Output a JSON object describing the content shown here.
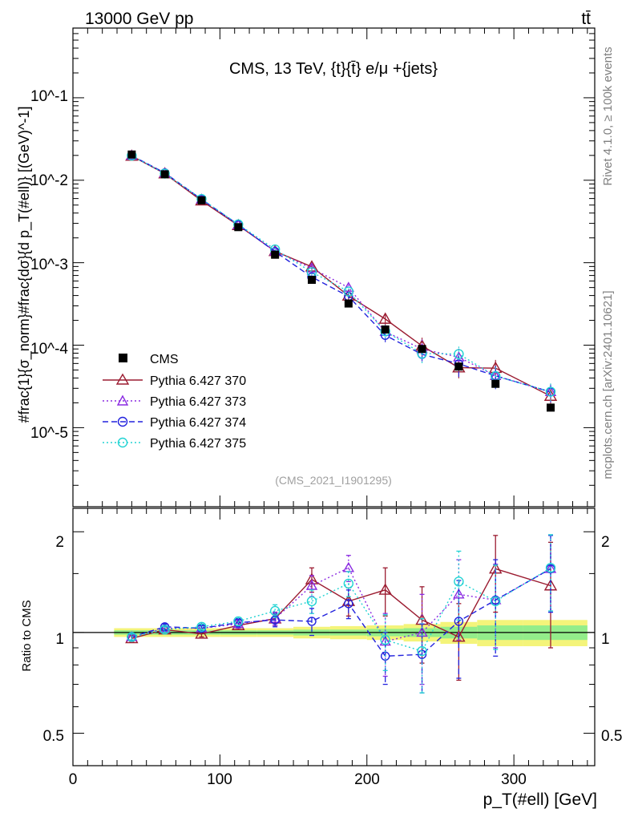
{
  "header": {
    "energy_label": "13000 GeV pp",
    "process_label": "tt̄",
    "rivet_label": "Rivet 4.1.0, ≥ 100k events",
    "source_label": "mcplots.cern.ch [arXiv:2401.10621]"
  },
  "chart_data": {
    "type": "line",
    "title": "CMS, 13 TeV, {t}{t̄} e/μ +{jets}",
    "analysis_id": "(CMS_2021_I1901295)",
    "xlabel": "p_T(#ell) [GeV]",
    "ylabel": "#frac{1}{σ_norm}#frac{dσ}{d p_T(#ell)} [(GeV)^-1]",
    "ratio_ylabel": "Ratio to CMS",
    "xlim": [
      0,
      355
    ],
    "ylim": [
      1.1e-06,
      0.7
    ],
    "ratio_ylim": [
      0.4,
      2.35
    ],
    "yscale": "log",
    "x_ticks": [
      "0",
      "100",
      "200",
      "300"
    ],
    "y_ticks": [
      "10^-5",
      "10^-4",
      "10^-3",
      "10^-2",
      "10^-1"
    ],
    "ratio_ticks": [
      "0.5",
      "1",
      "2"
    ],
    "x": [
      40,
      62.5,
      87.5,
      112.5,
      137.5,
      162.5,
      187.5,
      212.5,
      237.5,
      262.5,
      287.5,
      325
    ],
    "data": {
      "name": "CMS",
      "values": [
        0.0205,
        0.0118,
        0.0057,
        0.0027,
        0.00125,
        0.00062,
        0.00032,
        0.000155,
        9e-05,
        5.5e-05,
        3.4e-05,
        1.75e-05
      ],
      "band_inner": [
        0.015,
        0.015,
        0.015,
        0.015,
        0.015,
        0.02,
        0.02,
        0.025,
        0.03,
        0.04,
        0.05,
        0.05
      ],
      "band_outer": [
        0.03,
        0.03,
        0.03,
        0.03,
        0.03,
        0.04,
        0.045,
        0.05,
        0.06,
        0.075,
        0.09,
        0.09
      ]
    },
    "legend": [
      "CMS",
      "Pythia 6.427 370",
      "Pythia 6.427 373",
      "Pythia 6.427 374",
      "Pythia 6.427 375"
    ],
    "series": [
      {
        "name": "Pythia 6.427 370",
        "color": "#9b1b30",
        "marker": "triangle",
        "dash": "",
        "ratio": [
          0.96,
          1.02,
          0.99,
          1.05,
          1.1,
          1.44,
          1.24,
          1.34,
          1.09,
          0.97,
          1.55,
          1.38
        ],
        "ratio_err": [
          0.02,
          0.02,
          0.02,
          0.03,
          0.05,
          0.12,
          0.12,
          0.22,
          0.28,
          0.25,
          0.4,
          0.48
        ]
      },
      {
        "name": "Pythia 6.427 373",
        "color": "#8b2be2",
        "marker": "triangle",
        "dash": "2,3",
        "ratio": [
          0.97,
          1.03,
          1.03,
          1.06,
          1.1,
          1.38,
          1.56,
          0.94,
          1.0,
          1.3,
          1.25,
          1.55
        ],
        "ratio_err": [
          0.02,
          0.02,
          0.02,
          0.03,
          0.05,
          0.1,
          0.14,
          0.2,
          0.3,
          0.35,
          0.35,
          0.4
        ]
      },
      {
        "name": "Pythia 6.427 374",
        "color": "#2222dd",
        "marker": "circle",
        "dash": "7,4",
        "ratio": [
          0.97,
          1.04,
          1.03,
          1.07,
          1.09,
          1.08,
          1.22,
          0.85,
          0.86,
          1.08,
          1.25,
          1.55
        ],
        "ratio_err": [
          0.02,
          0.02,
          0.02,
          0.03,
          0.05,
          0.1,
          0.12,
          0.15,
          0.2,
          0.35,
          0.4,
          0.4
        ]
      },
      {
        "name": "Pythia 6.427 375",
        "color": "#22d3d3",
        "marker": "circle",
        "dash": "2,3",
        "ratio": [
          0.97,
          1.02,
          1.04,
          1.08,
          1.16,
          1.24,
          1.4,
          0.95,
          0.88,
          1.42,
          1.24,
          1.56
        ],
        "ratio_err": [
          0.02,
          0.02,
          0.02,
          0.03,
          0.05,
          0.1,
          0.12,
          0.18,
          0.22,
          0.33,
          0.35,
          0.4
        ]
      }
    ]
  }
}
